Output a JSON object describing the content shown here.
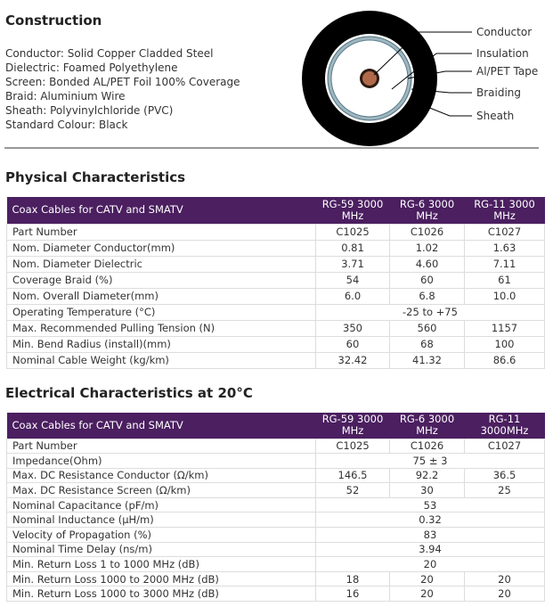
{
  "construction": {
    "title": "Construction",
    "lines": [
      "Conductor: Solid Copper Cladded Steel",
      "Dielectric: Foamed Polyethylene",
      "Screen: Bonded AL/PET Foil 100% Coverage",
      "Braid: Aluminium Wire",
      "Sheath: Polyvinylchloride (PVC)",
      "Standard Colour: Black"
    ],
    "diagram_labels": [
      "Conductor",
      "Insulation",
      "Al/PET Tape",
      "Braiding",
      "Sheath"
    ]
  },
  "physical": {
    "title": "Physical Characteristics",
    "header": [
      "Coax Cables for CATV and SMATV",
      "RG-59 3000 MHz",
      "RG-6 3000 MHz",
      "RG-11 3000 MHz"
    ],
    "rows": [
      [
        "Part Number",
        "C1025",
        "C1026",
        "C1027"
      ],
      [
        "Nom. Diameter Conductor(mm)",
        "0.81",
        "1.02",
        "1.63"
      ],
      [
        "Nom. Diameter Dielectric",
        "3.71",
        "4.60",
        "7.11"
      ],
      [
        "Coverage Braid (%)",
        "54",
        "60",
        "61"
      ],
      [
        "Nom. Overall Diameter(mm)",
        "6.0",
        "6.8",
        "10.0"
      ],
      [
        "Operating Temperature (°C)",
        "-25 to +75"
      ],
      [
        "Max. Recommended Pulling Tension (N)",
        "350",
        "560",
        "1157"
      ],
      [
        "Min. Bend Radius (install)(mm)",
        "60",
        "68",
        "100"
      ],
      [
        "Nominal Cable Weight (kg/km)",
        "32.42",
        "41.32",
        "86.6"
      ]
    ]
  },
  "electrical": {
    "title": "Electrical Characteristics at 20°C",
    "header": [
      "Coax Cables for CATV and SMATV",
      "RG-59 3000 MHz",
      "RG-6 3000 MHz",
      "RG-11 3000MHz"
    ],
    "rows": [
      [
        "Part Number",
        "C1025",
        "C1026",
        "C1027"
      ],
      [
        "Impedance(Ohm)",
        "75 ± 3"
      ],
      [
        "Max. DC Resistance Conductor (Ω/km)",
        "146.5",
        "92.2",
        "36.5"
      ],
      [
        "Max. DC Resistance Screen (Ω/km)",
        "52",
        "30",
        "25"
      ],
      [
        "Nominal Capacitance (pF/m)",
        "53"
      ],
      [
        "Nominal Inductance (µH/m)",
        "0.32"
      ],
      [
        "Velocity of Propagation (%)",
        "83"
      ],
      [
        "Nominal Time Delay (ns/m)",
        "3.94"
      ],
      [
        "Min. Return Loss 1 to 1000 MHz (dB)",
        "20"
      ],
      [
        "Min. Return Loss 1000 to 2000 MHz (dB)",
        "18",
        "20",
        "20"
      ],
      [
        "Min. Return Loss 1000 to 3000 MHz (dB)",
        "16",
        "20",
        "20"
      ]
    ]
  }
}
